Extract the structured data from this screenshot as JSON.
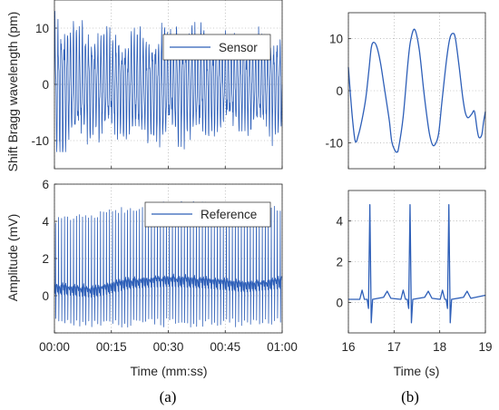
{
  "chart_data": [
    {
      "id": "a_top",
      "type": "line",
      "panel": "(a)",
      "title": "",
      "xlabel": "",
      "ylabel": "Shift Bragg wavelength (pm)",
      "xlim": [
        0,
        60
      ],
      "ylim": [
        -15,
        15
      ],
      "xticks": [
        0,
        15,
        30,
        45,
        60
      ],
      "xtick_labels": [],
      "yticks": [
        -10,
        0,
        10
      ],
      "ytick_labels": [
        "-10",
        "0",
        "10"
      ],
      "grid": "dotted",
      "legend": "top-right",
      "series": [
        {
          "name": "Sensor",
          "color": "#2e5fb8",
          "pattern": "dense oscillation, ~75 cycles/min",
          "amplitude_envelope": [
            [
              0,
              12
            ],
            [
              5,
              11
            ],
            [
              10,
              9
            ],
            [
              20,
              9
            ],
            [
              30,
              10
            ],
            [
              40,
              9
            ],
            [
              50,
              8
            ],
            [
              60,
              9
            ]
          ],
          "y_range": [
            -12,
            13
          ]
        }
      ]
    },
    {
      "id": "a_bottom",
      "type": "line",
      "panel": "(a)",
      "title": "",
      "xlabel": "Time (mm:ss)",
      "ylabel": "Amplitude (mV)",
      "xlim": [
        0,
        60
      ],
      "ylim": [
        -2,
        6
      ],
      "xticks": [
        0,
        15,
        30,
        45,
        60
      ],
      "xtick_labels": [
        "00:00",
        "00:15",
        "00:30",
        "00:45",
        "01:00"
      ],
      "yticks": [
        -2,
        0,
        2,
        4,
        6
      ],
      "ytick_labels": [
        "",
        "0",
        "2",
        "4",
        "6"
      ],
      "grid": "dotted",
      "legend": "top-right",
      "series": [
        {
          "name": "Reference",
          "color": "#2e5fb8",
          "pattern": "ECG R-peaks, ~75 beats/min",
          "peak_envelope": [
            [
              0,
              4.2
            ],
            [
              10,
              4.5
            ],
            [
              20,
              4.9
            ],
            [
              30,
              5.1
            ],
            [
              40,
              5.1
            ],
            [
              50,
              5.0
            ],
            [
              60,
              4.9
            ]
          ],
          "baseline_envelope": [
            [
              0,
              0.3
            ],
            [
              10,
              0.1
            ],
            [
              20,
              0.6
            ],
            [
              30,
              0.7
            ],
            [
              40,
              0.6
            ],
            [
              50,
              0.4
            ],
            [
              60,
              0.6
            ]
          ],
          "y_range": [
            -1.7,
            5.2
          ]
        }
      ]
    },
    {
      "id": "b_top",
      "type": "line",
      "panel": "(b)",
      "title": "",
      "xlabel": "",
      "ylabel": "",
      "xlim": [
        16,
        19
      ],
      "ylim": [
        -15,
        15
      ],
      "xticks": [
        16,
        17,
        18,
        19
      ],
      "xtick_labels": [],
      "yticks": [
        -10,
        0,
        10
      ],
      "ytick_labels": [
        "-10",
        "0",
        "10"
      ],
      "grid": "dotted",
      "legend": "none",
      "series": [
        {
          "name": "",
          "color": "#2e5fb8",
          "x": [
            16.0,
            16.08,
            16.15,
            16.22,
            16.3,
            16.38,
            16.45,
            16.5,
            16.55,
            16.62,
            16.7,
            16.78,
            16.85,
            16.9,
            16.95,
            17.02,
            17.06,
            17.1,
            17.2,
            17.3,
            17.36,
            17.45,
            17.55,
            17.65,
            17.72,
            17.78,
            17.85,
            17.92,
            17.98,
            18.05,
            18.15,
            18.22,
            18.28,
            18.34,
            18.42,
            18.5,
            18.56,
            18.62,
            18.7,
            18.76,
            18.82,
            18.86,
            18.92,
            18.96,
            19.0
          ],
          "y": [
            4.5,
            -4.5,
            -9.7,
            -8.5,
            -5.5,
            -1.5,
            4.0,
            8.2,
            9.3,
            8.5,
            5.5,
            1.0,
            -3.0,
            -6.0,
            -9.8,
            -11.5,
            -11.8,
            -11.0,
            -5.0,
            5.0,
            9.5,
            11.8,
            8.0,
            0.0,
            -5.0,
            -8.5,
            -10.5,
            -10.0,
            -8.0,
            -2.0,
            6.0,
            10.0,
            11.0,
            10.2,
            5.0,
            -1.0,
            -4.2,
            -5.2,
            -4.5,
            -4.0,
            -7.5,
            -9.0,
            -8.5,
            -6.0,
            -4.0
          ]
        }
      ]
    },
    {
      "id": "b_bottom",
      "type": "line",
      "panel": "(b)",
      "title": "",
      "xlabel": "Time (s)",
      "ylabel": "",
      "xlim": [
        16,
        19
      ],
      "ylim": [
        -1.5,
        5.5
      ],
      "xticks": [
        16,
        17,
        18,
        19
      ],
      "xtick_labels": [
        "16",
        "17",
        "18",
        "19"
      ],
      "yticks": [
        0,
        2,
        4
      ],
      "ytick_labels": [
        "0",
        "2",
        "4"
      ],
      "grid": "dotted",
      "legend": "none",
      "series": [
        {
          "name": "",
          "color": "#2e5fb8",
          "pattern": "ECG detail",
          "r_peaks": [
            [
              16.47,
              4.8
            ],
            [
              17.35,
              4.8
            ],
            [
              18.2,
              4.8
            ]
          ],
          "p_waves": [
            16.3,
            17.2,
            18.06
          ],
          "t_waves": [
            16.85,
            17.75,
            18.6
          ],
          "baseline": 0.15,
          "s_trough": -1.0,
          "p_height": 0.6,
          "t_height": 0.55
        }
      ]
    }
  ],
  "captions": {
    "a": "(a)",
    "b": "(b)"
  }
}
